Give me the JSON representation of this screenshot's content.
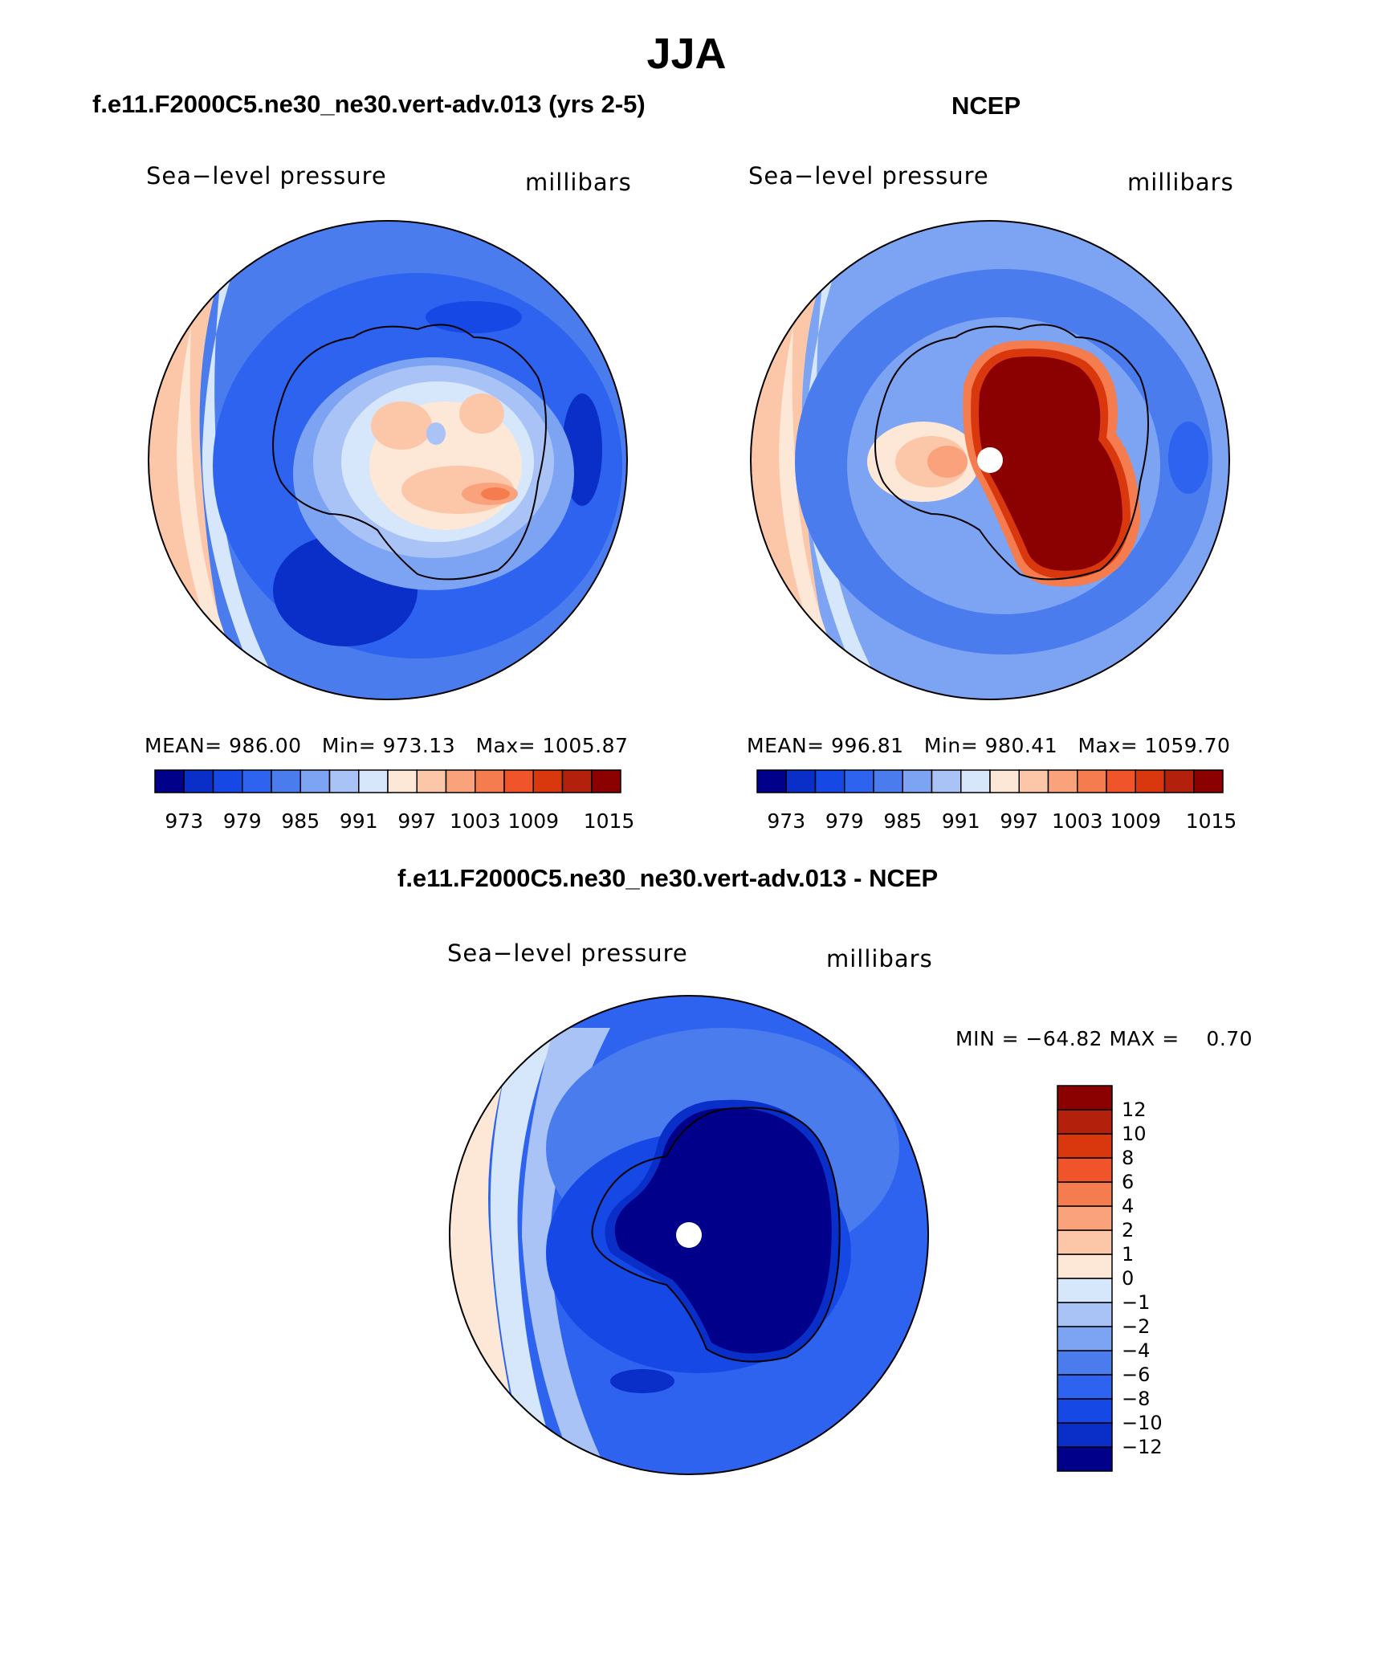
{
  "figure": {
    "title": "JJA",
    "panels": [
      {
        "title": "f.e11.F2000C5.ne30_ne30.vert-adv.013 (yrs 2-5)",
        "left_label": "Sea−level pressure",
        "right_label": "millibars",
        "stats": "MEAN= 986.00   Min= 973.13   Max= 1005.87"
      },
      {
        "title": "NCEP",
        "left_label": "Sea−level pressure",
        "right_label": "millibars",
        "stats": "MEAN= 996.81   Min= 980.41   Max= 1059.70"
      },
      {
        "title": "f.e11.F2000C5.ne30_ne30.vert-adv.013 - NCEP",
        "left_label": "Sea−level pressure",
        "right_label": "millibars",
        "stats": "MIN = −64.82 MAX =    0.70"
      }
    ],
    "colorbar_abs": {
      "colors": [
        "#00008b",
        "#0a2fc9",
        "#1648e6",
        "#2e63f0",
        "#4a7cee",
        "#7da3f3",
        "#a9c3f7",
        "#d6e6fb",
        "#fde7d7",
        "#fcc6a9",
        "#f9a27c",
        "#f57c4e",
        "#f0542a",
        "#d9380f",
        "#b3200b",
        "#8b0000"
      ],
      "labels": [
        "973",
        "979",
        "985",
        "991",
        "997",
        "1003",
        "1009",
        "1015"
      ]
    },
    "colorbar_diff": {
      "colors": [
        "#00008b",
        "#0a2fc9",
        "#1648e6",
        "#2e63f0",
        "#4a7cee",
        "#7da3f3",
        "#a9c3f7",
        "#d6e6fb",
        "#fde7d7",
        "#fcc6a9",
        "#f9a27c",
        "#f57c4e",
        "#f0542a",
        "#d9380f",
        "#b3200b",
        "#8b0000"
      ],
      "labels": [
        "−12",
        "−10",
        "−8",
        "−6",
        "−4",
        "−2",
        "−1",
        "0",
        "1",
        "2",
        "4",
        "6",
        "8",
        "10",
        "12"
      ]
    }
  }
}
